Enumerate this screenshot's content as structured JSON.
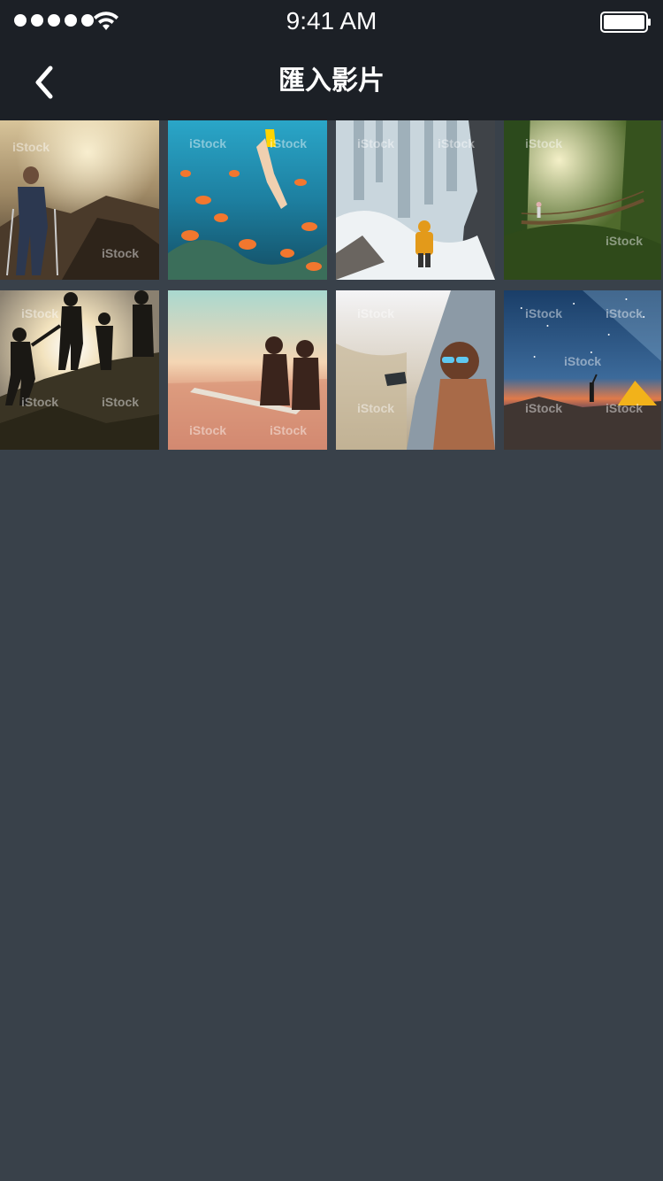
{
  "status_bar": {
    "time": "9:41 AM",
    "signal_bars": 5,
    "battery_level_percent": 100
  },
  "nav": {
    "title": "匯入影片",
    "back_icon": "chevron-left-icon"
  },
  "watermark": "iStock",
  "videos": [
    {
      "subject": "hiker-mountain-sunset-icon"
    },
    {
      "subject": "snorkeler-coral-reef-icon"
    },
    {
      "subject": "frozen-waterfall-hiker-icon"
    },
    {
      "subject": "jungle-suspension-bridge-icon"
    },
    {
      "subject": "hikers-helping-hand-icon"
    },
    {
      "subject": "surfers-sunset-sea-icon"
    },
    {
      "subject": "woman-car-window-icon"
    },
    {
      "subject": "night-sky-tent-icon"
    }
  ],
  "colors": {
    "background": "#39414a",
    "bar": "#1c2026",
    "text": "#ffffff"
  }
}
